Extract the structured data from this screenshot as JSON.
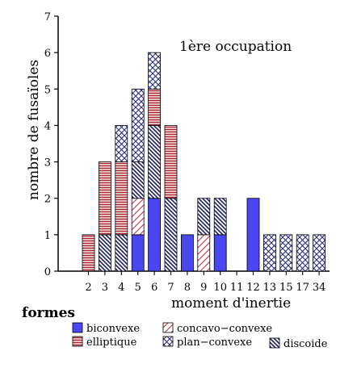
{
  "chart_data": {
    "type": "bar",
    "stacked": true,
    "title": "1ère occupation",
    "xlabel": "moment d'inertie",
    "ylabel": "nombre de fusaïoles",
    "ylim": [
      0,
      7
    ],
    "yticks": [
      "0",
      "1",
      "2",
      "3",
      "4",
      "5",
      "6",
      "7"
    ],
    "categories": [
      "2",
      "3",
      "4",
      "5",
      "6",
      "7",
      "8",
      "9",
      "10",
      "11",
      "12",
      "13",
      "15",
      "17",
      "34"
    ],
    "series": [
      {
        "name": "biconvexe",
        "key": "biconvexe",
        "values": [
          0,
          0,
          0,
          1,
          2,
          0,
          1,
          0,
          1,
          0,
          2,
          0,
          0,
          0,
          0
        ]
      },
      {
        "name": "elliptique",
        "key": "elliptique",
        "values": [
          1,
          2,
          2,
          0,
          1,
          2,
          0,
          0,
          0,
          0,
          0,
          0,
          0,
          0,
          0
        ]
      },
      {
        "name": "concavo-convexe",
        "key": "concavo",
        "values": [
          0,
          0,
          0,
          1,
          0,
          0,
          0,
          1,
          0,
          0,
          0,
          0,
          0,
          0,
          0
        ]
      },
      {
        "name": "plan-convexe",
        "key": "plan",
        "values": [
          0,
          0,
          1,
          2,
          1,
          0,
          0,
          0,
          0,
          0,
          0,
          1,
          1,
          1,
          1
        ]
      },
      {
        "name": "discoide",
        "key": "discoide",
        "values": [
          0,
          1,
          1,
          1,
          2,
          2,
          0,
          1,
          1,
          0,
          0,
          0,
          0,
          0,
          0
        ]
      }
    ],
    "stack_order": [
      [
        "elliptique"
      ],
      [
        "discoide",
        "elliptique"
      ],
      [
        "discoide",
        "elliptique",
        "plan"
      ],
      [
        "biconvexe",
        "concavo",
        "discoide",
        "plan"
      ],
      [
        "biconvexe",
        "discoide",
        "elliptique",
        "plan"
      ],
      [
        "discoide",
        "elliptique"
      ],
      [
        "biconvexe"
      ],
      [
        "concavo",
        "discoide"
      ],
      [
        "biconvexe",
        "discoide"
      ],
      [],
      [
        "biconvexe"
      ],
      [
        "plan"
      ],
      [
        "plan"
      ],
      [
        "plan"
      ],
      [
        "plan"
      ]
    ],
    "legend": {
      "title": "formes",
      "entries": [
        {
          "key": "biconvexe",
          "label": "biconvexe"
        },
        {
          "key": "concavo",
          "label": "concavo−convexe"
        },
        {
          "key": "elliptique",
          "label": "elliptique"
        },
        {
          "key": "plan",
          "label": "plan−convexe"
        },
        {
          "key": "discoide",
          "label": "discoide"
        }
      ],
      "placement": "bottom-left"
    },
    "colors": {
      "biconvexe": "#4a47f0",
      "elliptique": "#a8232c",
      "concavo": "#c8283a",
      "plan": "#2a2a7a",
      "discoide": "#2a2a6a"
    },
    "grid": false
  }
}
